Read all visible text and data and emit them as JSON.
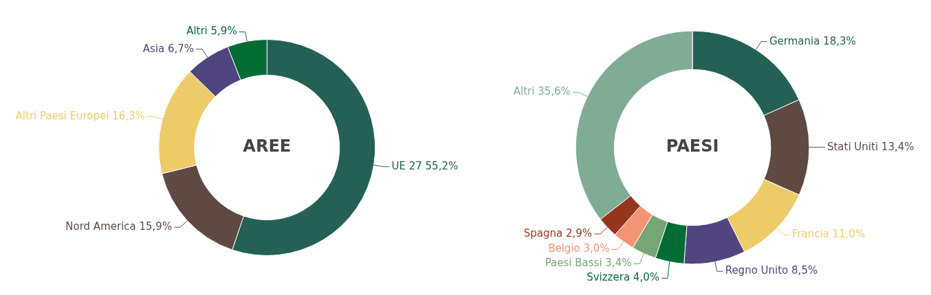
{
  "chart_data": [
    {
      "type": "donut",
      "title": "AREE",
      "categories": [
        "UE 27",
        "Nord America",
        "Altri Paesi Europei",
        "Asia",
        "Altri"
      ],
      "values": [
        55.2,
        15.9,
        16.3,
        6.7,
        5.9
      ],
      "value_labels": [
        "55,2%",
        "15,9%",
        "16,3%",
        "6,7%",
        "5,9%"
      ],
      "colors": [
        "#246055",
        "#5e4a42",
        "#eecb69",
        "#514580",
        "#046b35"
      ],
      "legend": false
    },
    {
      "type": "donut",
      "title": "PAESI",
      "categories": [
        "Germania",
        "Stati Uniti",
        "Francia",
        "Regno Unito",
        "Svizzera",
        "Paesi Bassi",
        "Belgio",
        "Spagna",
        "Altri"
      ],
      "values": [
        18.3,
        13.4,
        11.0,
        8.5,
        4.0,
        3.4,
        3.0,
        2.9,
        35.6
      ],
      "value_labels": [
        "18,3%",
        "13,4%",
        "11,0%",
        "8,5%",
        "4,0%",
        "3,4%",
        "3,0%",
        "2,9%",
        "35,6%"
      ],
      "colors": [
        "#246055",
        "#5e4a42",
        "#eecb69",
        "#514580",
        "#046b35",
        "#76a677",
        "#f59375",
        "#96361f",
        "#80ac96"
      ],
      "legend": false
    }
  ]
}
